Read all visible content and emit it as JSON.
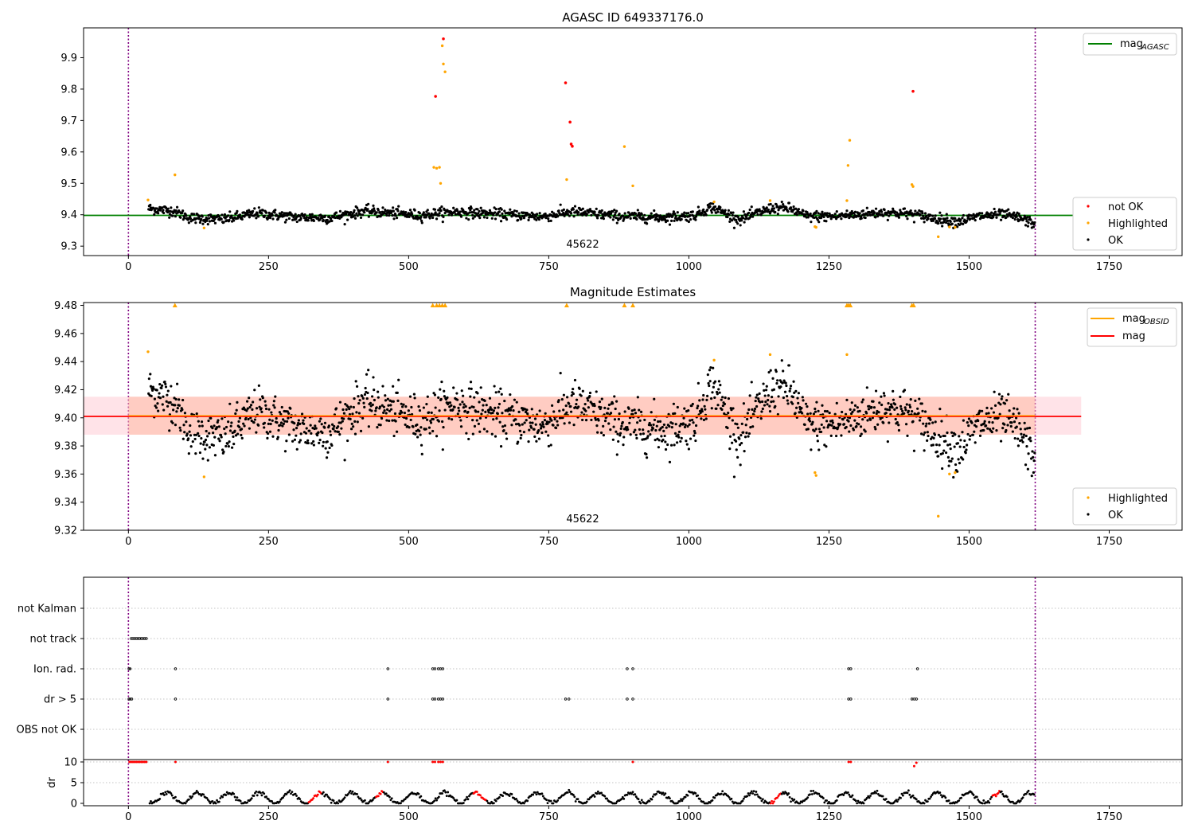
{
  "chart_data": [
    {
      "type": "scatter",
      "title": "AGASC ID 649337176.0",
      "xlim": [
        -80,
        1880
      ],
      "ylim": [
        9.27,
        9.995
      ],
      "xticks": [
        0,
        250,
        500,
        750,
        1000,
        1250,
        1500,
        1750
      ],
      "yticks": [
        9.3,
        9.4,
        9.5,
        9.6,
        9.7,
        9.8,
        9.9
      ],
      "obsid_label": "45622",
      "obsid_label_x": 810,
      "obs_boundaries": [
        0,
        1618
      ],
      "mag_agasc": 9.398,
      "legend_upper": [
        {
          "label": "mag",
          "sub": "AGASC",
          "color": "#008000"
        }
      ],
      "legend_lower": [
        {
          "label": "not OK",
          "color": "#ff0000"
        },
        {
          "label": "Highlighted",
          "color": "#ffa500"
        },
        {
          "label": "OK",
          "color": "#000000"
        }
      ],
      "series": [
        {
          "name": "not OK",
          "color": "#ff0000",
          "x": [
            548,
            562,
            780,
            788,
            790,
            792,
            1400
          ],
          "y": [
            9.777,
            9.96,
            9.82,
            9.695,
            9.625,
            9.618,
            9.793
          ]
        },
        {
          "name": "Highlighted",
          "color": "#ffa500",
          "x": [
            35,
            83,
            135,
            545,
            550,
            555,
            557,
            560,
            562,
            565,
            782,
            885,
            900,
            1045,
            1145,
            1225,
            1227,
            1282,
            1284,
            1287,
            1398,
            1400,
            1445,
            1465,
            1475
          ],
          "y": [
            9.447,
            9.527,
            9.358,
            9.551,
            9.548,
            9.551,
            9.5,
            9.938,
            9.88,
            9.855,
            9.512,
            9.617,
            9.492,
            9.441,
            9.445,
            9.362,
            9.36,
            9.445,
            9.557,
            9.637,
            9.496,
            9.49,
            9.33,
            9.361,
            9.36
          ]
        },
        {
          "name": "OK",
          "color": "#000000",
          "x": [],
          "y": []
        }
      ]
    },
    {
      "type": "scatter",
      "title": "Magnitude Estimates",
      "xlim": [
        -80,
        1880
      ],
      "ylim": [
        9.32,
        9.482
      ],
      "xticks": [
        0,
        250,
        500,
        750,
        1000,
        1250,
        1500,
        1750
      ],
      "yticks": [
        9.32,
        9.34,
        9.36,
        9.38,
        9.4,
        9.42,
        9.44,
        9.46,
        9.48
      ],
      "obsid_label": "45622",
      "obsid_label_x": 810,
      "obs_boundaries": [
        0,
        1618
      ],
      "mag": 9.401,
      "mag_band": [
        9.388,
        9.415
      ],
      "mag_x_range": [
        -80,
        1700
      ],
      "legend_upper": [
        {
          "label": "mag",
          "sub": "OBSID",
          "color": "#ffa500"
        },
        {
          "label": "mag",
          "sub": "",
          "color": "#ff0000"
        }
      ],
      "legend_lower": [
        {
          "label": "Highlighted",
          "color": "#ffa500"
        },
        {
          "label": "OK",
          "color": "#000000"
        }
      ],
      "series": [
        {
          "name": "Highlighted",
          "color": "#ffa500",
          "x": [
            35,
            135,
            1045,
            1145,
            1225,
            1227,
            1282,
            1445,
            1465,
            1475
          ],
          "y": [
            9.447,
            9.358,
            9.441,
            9.445,
            9.361,
            9.359,
            9.445,
            9.33,
            9.36,
            9.361
          ]
        },
        {
          "name": "Highlighted (clipped)",
          "color": "#ffa500",
          "x": [
            83,
            543,
            550,
            555,
            560,
            565,
            782,
            885,
            900,
            1282,
            1285,
            1288,
            1398,
            1401
          ],
          "y": [
            9.48,
            9.48,
            9.48,
            9.48,
            9.48,
            9.48,
            9.48,
            9.48,
            9.48,
            9.48,
            9.48,
            9.48,
            9.48,
            9.48
          ]
        },
        {
          "name": "OK",
          "color": "#000000",
          "x": [],
          "y": []
        }
      ]
    },
    {
      "type": "scatter",
      "xlim": [
        -80,
        1880
      ],
      "xticks": [
        0,
        250,
        500,
        750,
        1000,
        1250,
        1500,
        1750
      ],
      "obs_boundaries": [
        0,
        1618
      ],
      "flag_categories": [
        "not Kalman",
        "not track",
        "Ion. rad.",
        "dr > 5",
        "OBS not OK"
      ],
      "flag_series": [
        {
          "name": "not track",
          "x": [
            5,
            8,
            11,
            14,
            17,
            20,
            23,
            26,
            29,
            32
          ]
        },
        {
          "name": "Ion. rad.",
          "x": [
            1,
            3,
            84,
            463,
            543,
            547,
            553,
            557,
            561,
            890,
            900,
            1285,
            1289,
            1408
          ]
        },
        {
          "name": "dr > 5",
          "x": [
            1,
            3,
            6,
            84,
            463,
            543,
            547,
            553,
            557,
            561,
            780,
            786,
            890,
            900,
            1285,
            1289,
            1398,
            1402,
            1406
          ]
        }
      ]
    },
    {
      "type": "scatter",
      "ylabel": "dr",
      "xlim": [
        -80,
        1880
      ],
      "ylim": [
        -0.5,
        10.5
      ],
      "xticks": [
        0,
        250,
        500,
        750,
        1000,
        1250,
        1500,
        1750
      ],
      "yticks": [
        0,
        5,
        10
      ],
      "obs_boundaries": [
        0,
        1618
      ],
      "series": [
        {
          "name": "dr > 5",
          "color": "#ff0000",
          "x": [
            2,
            5,
            8,
            11,
            14,
            17,
            20,
            23,
            26,
            29,
            32,
            84,
            463,
            543,
            547,
            553,
            557,
            561,
            900,
            1285,
            1289,
            1402,
            1406
          ],
          "y": [
            10,
            10,
            10,
            10,
            10,
            10,
            10,
            10,
            10,
            10,
            10,
            10,
            10,
            10,
            10,
            10,
            10,
            10,
            10,
            10,
            10,
            9,
            9.8
          ]
        },
        {
          "name": "dr",
          "color": "#000000",
          "x": [],
          "y": []
        }
      ]
    }
  ]
}
